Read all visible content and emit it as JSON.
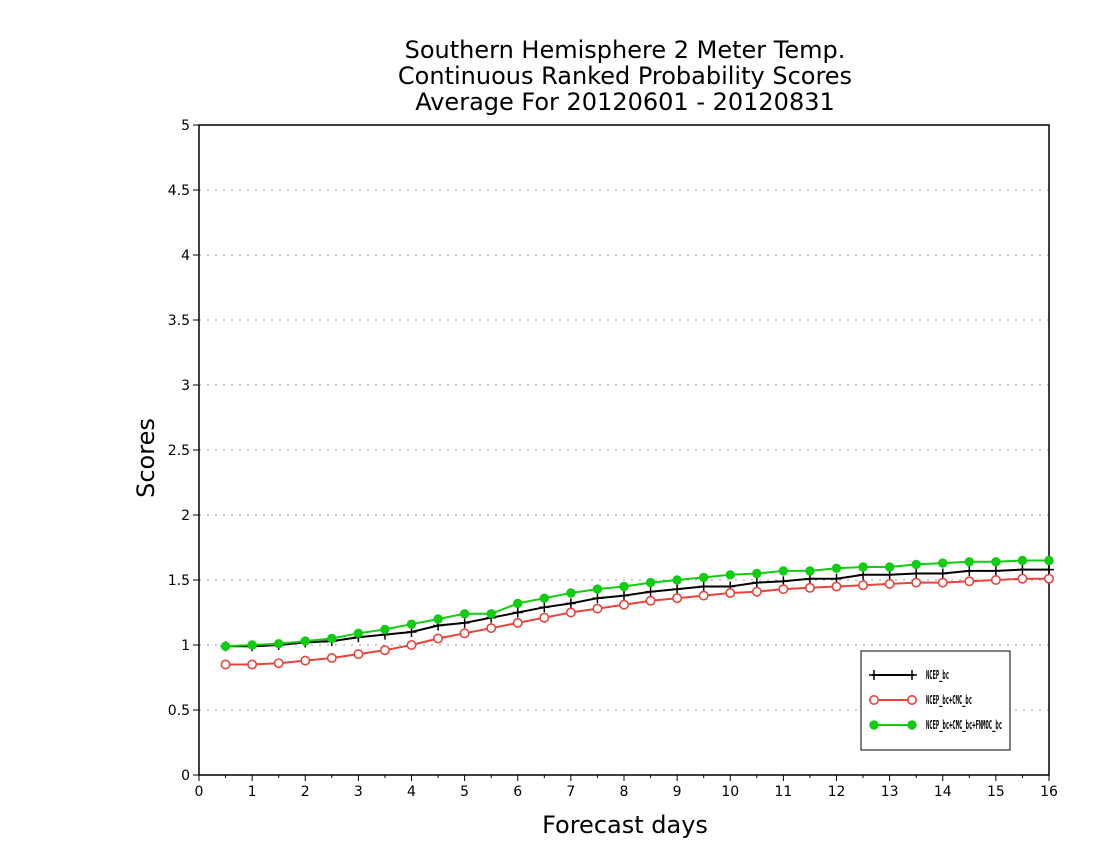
{
  "chart_data": {
    "type": "line",
    "title_lines": [
      "Southern Hemisphere 2 Meter Temp.",
      "Continuous Ranked Probability Scores",
      "Average For 20120601 - 20120831"
    ],
    "xlabel": "Forecast days",
    "ylabel": "Scores",
    "xlim": [
      0,
      16
    ],
    "ylim": [
      0,
      5
    ],
    "xticks": [
      0,
      1,
      2,
      3,
      4,
      5,
      6,
      7,
      8,
      9,
      10,
      11,
      12,
      13,
      14,
      15,
      16
    ],
    "yticks": [
      0,
      0.5,
      1,
      1.5,
      2,
      2.5,
      3,
      3.5,
      4,
      4.5,
      5
    ],
    "ytick_labels": [
      "0",
      "0.5",
      "1",
      "1.5",
      "2",
      "2.5",
      "3",
      "3.5",
      "4",
      "4.5",
      "5"
    ],
    "grid": "horizontal dotted",
    "legend_position": "bottom-right",
    "x": [
      0.5,
      1,
      1.5,
      2,
      2.5,
      3,
      3.5,
      4,
      4.5,
      5,
      5.5,
      6,
      6.5,
      7,
      7.5,
      8,
      8.5,
      9,
      9.5,
      10,
      10.5,
      11,
      11.5,
      12,
      12.5,
      13,
      13.5,
      14,
      14.5,
      15,
      15.5,
      16
    ],
    "series": [
      {
        "legend_text": "NCEP_bc",
        "color": "#000000",
        "marker": "plus",
        "values": [
          0.99,
          0.99,
          1.0,
          1.02,
          1.03,
          1.06,
          1.08,
          1.1,
          1.15,
          1.17,
          1.21,
          1.25,
          1.29,
          1.32,
          1.36,
          1.38,
          1.41,
          1.43,
          1.45,
          1.45,
          1.48,
          1.49,
          1.51,
          1.51,
          1.54,
          1.54,
          1.55,
          1.55,
          1.57,
          1.57,
          1.58,
          1.58
        ]
      },
      {
        "legend_text": "NCEP_bc+CMC_bc",
        "color": "#e8443a",
        "marker": "open-circle",
        "values": [
          0.85,
          0.85,
          0.86,
          0.88,
          0.9,
          0.93,
          0.96,
          1.0,
          1.05,
          1.09,
          1.13,
          1.17,
          1.21,
          1.25,
          1.28,
          1.31,
          1.34,
          1.36,
          1.38,
          1.4,
          1.41,
          1.43,
          1.44,
          1.45,
          1.46,
          1.47,
          1.48,
          1.48,
          1.49,
          1.5,
          1.51,
          1.51
        ]
      },
      {
        "legend_text": "NCEP_bc+CMC_bc+FNMOC_bc",
        "color": "#11cc11",
        "marker": "filled-circle",
        "values": [
          0.99,
          1.0,
          1.01,
          1.03,
          1.05,
          1.09,
          1.12,
          1.16,
          1.2,
          1.24,
          1.24,
          1.32,
          1.36,
          1.4,
          1.43,
          1.45,
          1.48,
          1.5,
          1.52,
          1.54,
          1.55,
          1.57,
          1.57,
          1.59,
          1.6,
          1.6,
          1.62,
          1.63,
          1.64,
          1.64,
          1.65,
          1.65
        ]
      }
    ]
  }
}
